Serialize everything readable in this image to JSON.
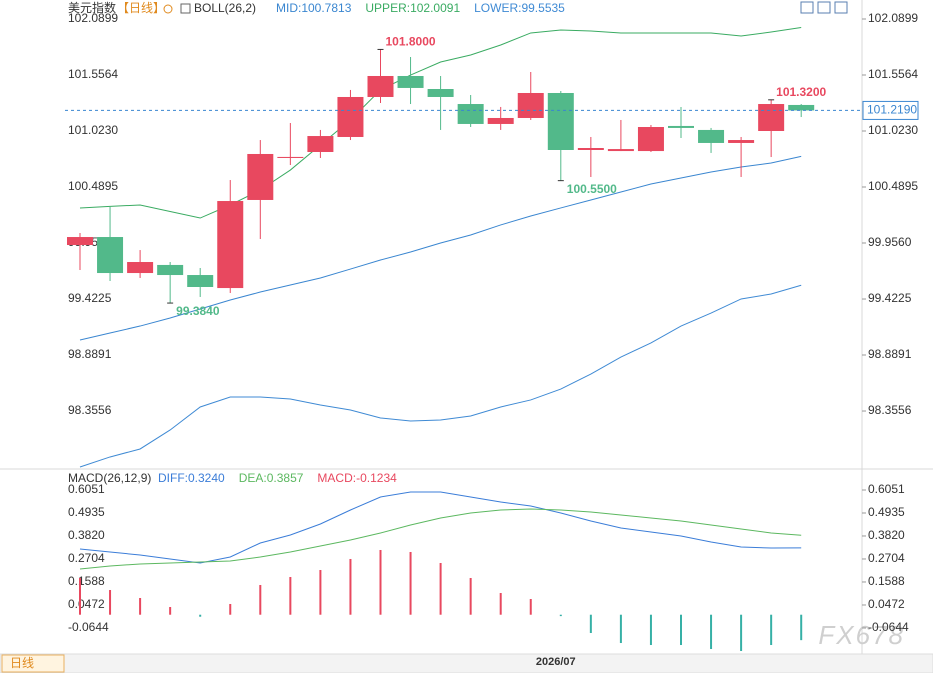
{
  "header": {
    "title": "美元指数",
    "period": "【日线】",
    "indicator": "BOLL(26,2)",
    "macd_indicator": "MACD(26,12,9)",
    "tab": "日线",
    "watermark": "FX678"
  },
  "chart_data": [
    {
      "type": "candlestick",
      "categories": [
        null,
        null,
        null,
        null,
        null,
        null,
        null,
        null,
        null,
        null,
        null,
        null,
        null,
        null,
        null,
        null,
        "2026/07",
        null,
        null,
        null,
        null,
        null,
        null,
        null,
        null
      ],
      "open": [
        99.937,
        100.013,
        99.67,
        99.747,
        99.651,
        99.527,
        100.366,
        100.766,
        100.823,
        100.966,
        101.347,
        101.547,
        101.423,
        101.28,
        101.09,
        101.147,
        101.385,
        100.842,
        100.832,
        100.832,
        101.071,
        101.033,
        100.909,
        101.023,
        101.271
      ],
      "close": [
        100.013,
        99.67,
        99.775,
        99.651,
        99.537,
        100.356,
        100.804,
        100.776,
        100.975,
        101.347,
        101.547,
        101.433,
        101.347,
        101.09,
        101.147,
        101.385,
        100.842,
        100.861,
        100.851,
        101.061,
        101.052,
        100.909,
        100.937,
        101.28,
        101.219
      ],
      "high": [
        100.051,
        100.299,
        99.889,
        99.775,
        99.718,
        100.556,
        100.937,
        101.099,
        101.033,
        101.414,
        101.8,
        101.728,
        101.547,
        101.366,
        101.252,
        101.585,
        101.404,
        100.966,
        101.128,
        101.08,
        101.252,
        101.052,
        100.966,
        101.32,
        101.28
      ],
      "low": [
        99.699,
        99.594,
        99.623,
        99.384,
        99.442,
        99.48,
        99.994,
        100.699,
        100.766,
        100.937,
        101.29,
        101.28,
        101.033,
        101.061,
        101.033,
        101.128,
        100.55,
        100.585,
        100.832,
        100.823,
        100.956,
        100.814,
        100.585,
        100.775,
        101.156
      ],
      "high_labels": [
        null,
        null,
        null,
        null,
        null,
        null,
        null,
        null,
        null,
        null,
        "101.8000",
        null,
        null,
        null,
        null,
        null,
        null,
        null,
        null,
        null,
        null,
        null,
        null,
        "101.3200",
        null
      ],
      "low_labels": [
        null,
        null,
        null,
        "99.3840",
        null,
        null,
        null,
        null,
        null,
        null,
        null,
        null,
        null,
        null,
        null,
        null,
        "100.5500",
        null,
        null,
        null,
        null,
        null,
        null,
        null,
        null
      ],
      "up_color": "#e8485f",
      "down_color": "#52b98a",
      "last_price": 101.219,
      "last_price_label": "101.2190",
      "series": [
        {
          "name": "MID",
          "legend_label": "MID:100.7813",
          "color": "#3a86d0",
          "values": [
            99.032,
            99.099,
            99.165,
            99.242,
            99.327,
            99.413,
            99.489,
            99.556,
            99.623,
            99.708,
            99.794,
            99.87,
            99.956,
            100.032,
            100.128,
            100.213,
            100.29,
            100.366,
            100.442,
            100.518,
            100.575,
            100.632,
            100.68,
            100.718,
            100.7813
          ]
        },
        {
          "name": "UPPER",
          "legend_label": "UPPER:102.0091",
          "color": "#3aab62",
          "values": [
            100.29,
            100.305,
            100.318,
            100.256,
            100.194,
            100.318,
            100.461,
            100.651,
            100.89,
            101.128,
            101.414,
            101.556,
            101.68,
            101.747,
            101.842,
            101.957,
            101.985,
            101.976,
            101.957,
            101.957,
            101.957,
            101.957,
            101.928,
            101.966,
            102.0091
          ]
        },
        {
          "name": "LOWER",
          "legend_label": "LOWER:99.5535",
          "color": "#3f8ad4",
          "values": [
            97.822,
            97.918,
            97.994,
            98.175,
            98.394,
            98.489,
            98.489,
            98.47,
            98.413,
            98.365,
            98.289,
            98.26,
            98.27,
            98.308,
            98.394,
            98.461,
            98.565,
            98.708,
            98.87,
            99.004,
            99.165,
            99.289,
            99.423,
            99.47,
            99.5535
          ]
        }
      ],
      "ylim": [
        97.8128,
        102.1756
      ],
      "yticks": [
        102.0899,
        101.5564,
        {
          "value": 101.023,
          "label": "101.0230"
        },
        100.4895,
        {
          "value": 99.956,
          "label": "99.9560"
        },
        99.4225,
        98.8891,
        98.3556
      ]
    },
    {
      "type": "macd",
      "series": [
        {
          "name": "DIFF",
          "legend_label": "DIFF:0.3240",
          "color": "#3b7dd8",
          "values": [
            0.3188,
            0.3043,
            0.2897,
            0.2703,
            0.2509,
            0.28,
            0.3479,
            0.3868,
            0.4401,
            0.5081,
            0.5711,
            0.5954,
            0.5954,
            0.5711,
            0.5469,
            0.5275,
            0.4935,
            0.4547,
            0.4207,
            0.4013,
            0.3819,
            0.3528,
            0.3285,
            0.3237,
            0.324
          ]
        },
        {
          "name": "DEA",
          "legend_label": "DEA:0.3857",
          "color": "#5cb860",
          "values": [
            0.2218,
            0.2363,
            0.2461,
            0.2509,
            0.2558,
            0.2606,
            0.28,
            0.3043,
            0.3334,
            0.3625,
            0.3965,
            0.4353,
            0.4692,
            0.4935,
            0.5081,
            0.5129,
            0.5081,
            0.4984,
            0.4838,
            0.4692,
            0.4547,
            0.4353,
            0.4159,
            0.3965,
            0.3857
          ]
        },
        {
          "name": "MACD",
          "legend_label": "MACD:-0.1234",
          "color": "#e8485f",
          "negative_color": "#36b0a6",
          "values": [
            0.1781,
            0.1199,
            0.0811,
            0.0374,
            -0.0098,
            0.052,
            0.1442,
            0.183,
            0.2169,
            0.2704,
            0.314,
            0.3043,
            0.2509,
            0.1781,
            0.1053,
            0.0762,
            -0.0068,
            -0.0887,
            -0.1373,
            -0.147,
            -0.147,
            -0.1664,
            -0.1761,
            -0.147,
            -0.1234
          ]
        }
      ],
      "ylim": [
        -0.1809,
        0.6439
      ],
      "yticks": [
        0.6051,
        0.4935,
        {
          "value": 0.382,
          "label": "0.3820"
        },
        0.2704,
        0.1588,
        0.0472,
        -0.0644
      ]
    }
  ]
}
